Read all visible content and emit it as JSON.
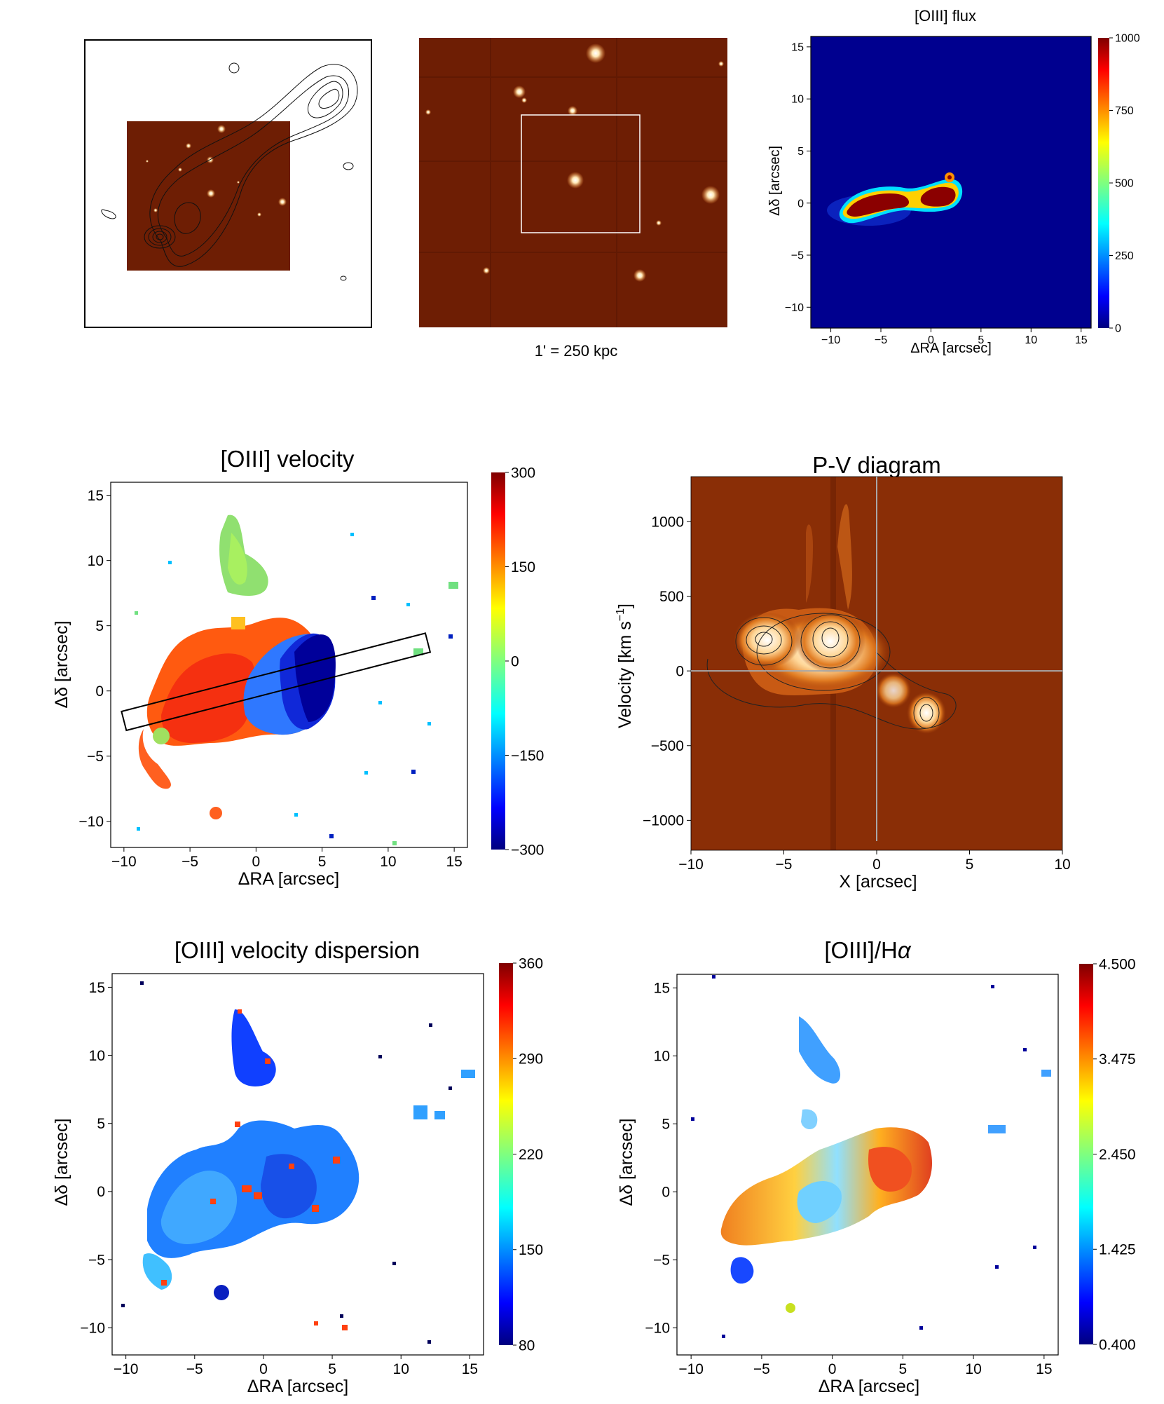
{
  "figure": {
    "scale_caption": "1' = 250 kpc",
    "colors": {
      "frame": "#000000",
      "orange_bg": "#6e1e04",
      "orange_star": "#fff6e0",
      "jet_low": "#00007f",
      "jet_high": "#7f0000"
    }
  },
  "chart_data": [
    {
      "id": "radio-overlay",
      "type": "image",
      "title": "",
      "xlabel": "",
      "ylabel": "",
      "description_items": []
    },
    {
      "id": "wide-field",
      "type": "image",
      "title": "",
      "caption": "1' = 250 kpc"
    },
    {
      "id": "oiii-flux",
      "type": "heatmap",
      "title": "[OIII] flux",
      "xlabel": "ΔRA [arcsec]",
      "ylabel": "Δδ [arcsec]",
      "xlim": [
        -12,
        16
      ],
      "ylim": [
        -12,
        16
      ],
      "xticks": [
        -10,
        -5,
        0,
        5,
        10,
        15
      ],
      "yticks": [
        -10,
        -5,
        0,
        5,
        10,
        15
      ],
      "xtick_labels": [
        "−10",
        "−5",
        "0",
        "5",
        "10",
        "15"
      ],
      "ytick_labels": [
        "−10",
        "−5",
        "0",
        "5",
        "10",
        "15"
      ],
      "colorbar": {
        "min": 0,
        "max": 1000,
        "ticks": [
          0,
          250,
          500,
          750,
          1000
        ],
        "tick_labels": [
          "0",
          "250",
          "500",
          "750",
          "1000"
        ]
      }
    },
    {
      "id": "oiii-velocity",
      "type": "heatmap",
      "title": "[OIII] velocity",
      "xlabel": "ΔRA [arcsec]",
      "ylabel": "Δδ [arcsec]",
      "xlim": [
        -11,
        16
      ],
      "ylim": [
        -12,
        16
      ],
      "xticks": [
        -10,
        -5,
        0,
        5,
        10,
        15
      ],
      "yticks": [
        -10,
        -5,
        0,
        5,
        10,
        15
      ],
      "xtick_labels": [
        "−10",
        "−5",
        "0",
        "5",
        "10",
        "15"
      ],
      "ytick_labels": [
        "−10",
        "−5",
        "0",
        "5",
        "10",
        "15"
      ],
      "colorbar": {
        "min": -300,
        "max": 300,
        "ticks": [
          -300,
          -150,
          0,
          150,
          300
        ],
        "tick_labels": [
          "−300",
          "−150",
          "0",
          "150",
          "300"
        ]
      },
      "slit": {
        "from": [
          -10,
          -2.3
        ],
        "to": [
          13,
          3.7
        ],
        "width_arcsec": 1.5
      }
    },
    {
      "id": "pv-diagram",
      "type": "heatmap",
      "title": "P-V diagram",
      "xlabel": "X [arcsec]",
      "ylabel": "Velocity [km s",
      "ylabel_sup": "−1",
      "ylabel_close": "]",
      "xlim": [
        -10,
        10
      ],
      "ylim": [
        -1200,
        1300
      ],
      "xticks": [
        -10,
        -5,
        0,
        5,
        10
      ],
      "yticks": [
        -1000,
        -500,
        0,
        500,
        1000
      ],
      "xtick_labels": [
        "−10",
        "−5",
        "0",
        "5",
        "10"
      ],
      "ytick_labels": [
        "−1000",
        "−500",
        "0",
        "500",
        "1000"
      ]
    },
    {
      "id": "oiii-dispersion",
      "type": "heatmap",
      "title": "[OIII] velocity dispersion",
      "xlabel": "ΔRA [arcsec]",
      "ylabel": "Δδ [arcsec]",
      "xlim": [
        -11,
        16
      ],
      "ylim": [
        -12,
        16
      ],
      "xticks": [
        -10,
        -5,
        0,
        5,
        10,
        15
      ],
      "yticks": [
        -10,
        -5,
        0,
        5,
        10,
        15
      ],
      "xtick_labels": [
        "−10",
        "−5",
        "0",
        "5",
        "10",
        "15"
      ],
      "ytick_labels": [
        "−10",
        "−5",
        "0",
        "5",
        "10",
        "15"
      ],
      "colorbar": {
        "min": 80,
        "max": 360,
        "ticks": [
          80,
          150,
          220,
          290,
          360
        ],
        "tick_labels": [
          "80",
          "150",
          "220",
          "290",
          "360"
        ]
      }
    },
    {
      "id": "oiii-halpha",
      "type": "heatmap",
      "title": "[OIII]/H",
      "title_symbol": "α",
      "xlabel": "ΔRA [arcsec]",
      "ylabel": "Δδ [arcsec]",
      "xlim": [
        -11,
        16
      ],
      "ylim": [
        -12,
        16
      ],
      "xticks": [
        -10,
        -5,
        0,
        5,
        10,
        15
      ],
      "yticks": [
        -10,
        -5,
        0,
        5,
        10,
        15
      ],
      "xtick_labels": [
        "−10",
        "−5",
        "0",
        "5",
        "10",
        "15"
      ],
      "ytick_labels": [
        "−10",
        "−5",
        "0",
        "5",
        "10",
        "15"
      ],
      "colorbar": {
        "min": 0.4,
        "max": 4.5,
        "ticks": [
          0.4,
          1.425,
          2.45,
          3.475,
          4.5
        ],
        "tick_labels": [
          "0.400",
          "1.425",
          "2.450",
          "3.475",
          "4.500"
        ]
      }
    }
  ]
}
